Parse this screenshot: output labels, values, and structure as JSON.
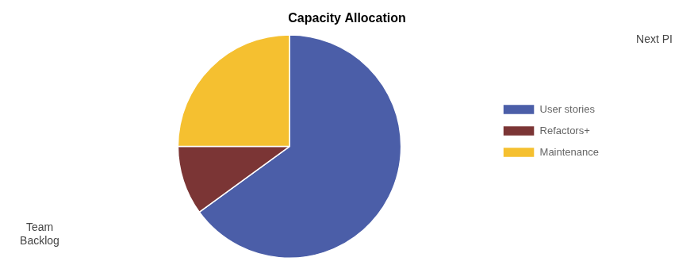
{
  "chart_data": {
    "type": "pie",
    "title": "Capacity Allocation",
    "categories": [
      "User stories",
      "Refactors+",
      "Maintenance"
    ],
    "values": [
      65,
      10,
      25
    ],
    "colors": [
      "#4B5EA8",
      "#7B3535",
      "#F5C030"
    ],
    "legend": "right",
    "annotations": [
      "Team\nBacklog",
      "Next PI"
    ]
  }
}
